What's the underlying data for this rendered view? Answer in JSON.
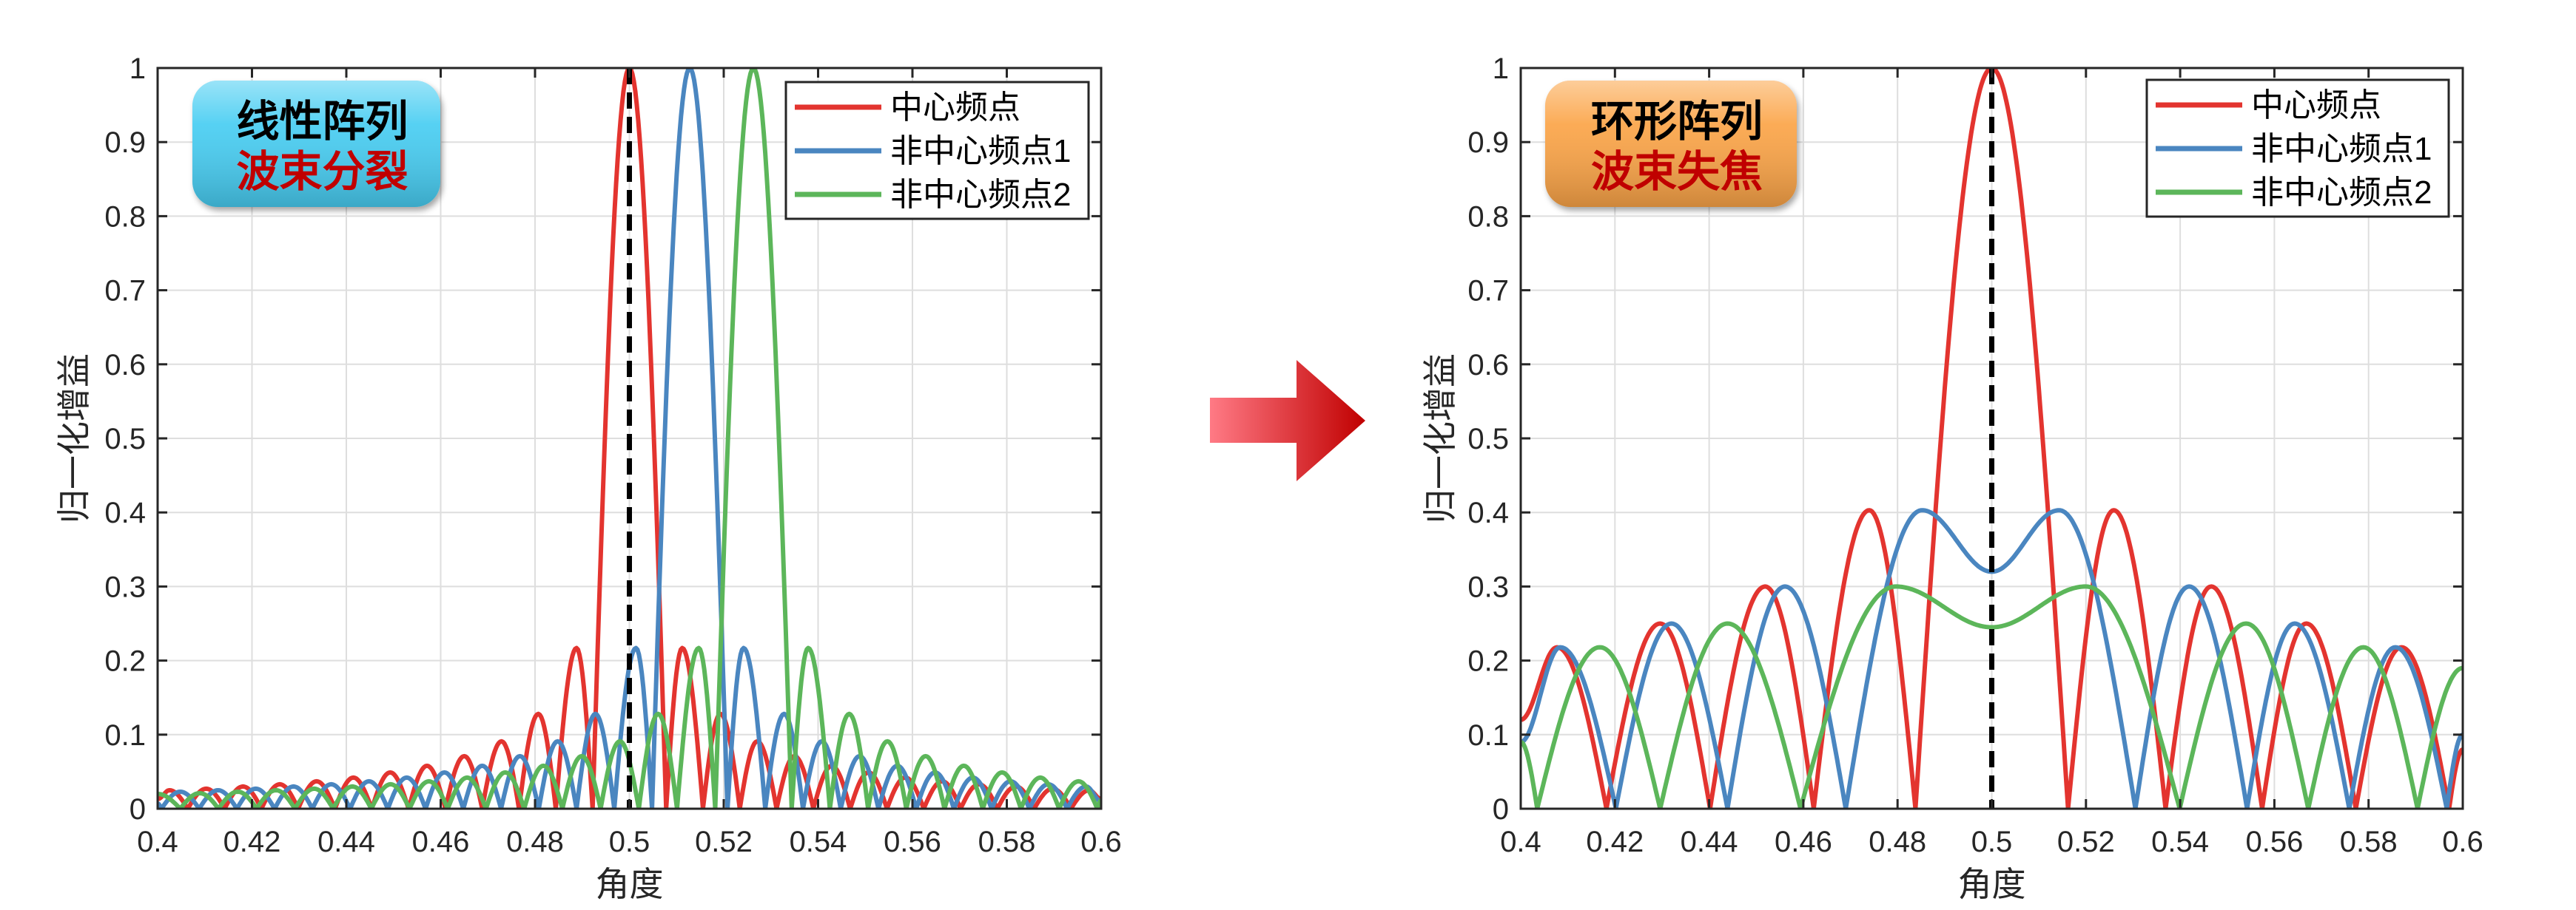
{
  "colors": {
    "red": "#e3342f",
    "blue": "#4a86c0",
    "green": "#5cb65a",
    "reference_line": "#000000",
    "arrow_start": "#ff7a85",
    "arrow_end": "#c00000"
  },
  "arrow": {
    "icon": "right-arrow-icon"
  },
  "chart_data": [
    {
      "type": "line",
      "title": "",
      "xlabel": "角度",
      "ylabel": "归一化增益",
      "xlim": [
        0.4,
        0.6
      ],
      "ylim": [
        0,
        1
      ],
      "xticks": [
        "0.4",
        "0.42",
        "0.44",
        "0.46",
        "0.48",
        "0.5",
        "0.52",
        "0.54",
        "0.56",
        "0.58",
        "0.6"
      ],
      "yticks": [
        "0",
        "0.1",
        "0.2",
        "0.3",
        "0.4",
        "0.5",
        "0.6",
        "0.7",
        "0.8",
        "0.9",
        "1"
      ],
      "grid": true,
      "legend_position": "top-right",
      "badge": {
        "line1": "线性阵列",
        "line2": "波束分裂",
        "color": "#46cdf2"
      },
      "reference_line_x": 0.5,
      "series": [
        {
          "name": "中心频点",
          "color": "#e3342f",
          "points": [
            [
              0.4,
              0.013
            ],
            [
              0.4025,
              0.025
            ],
            [
              0.4064,
              0
            ],
            [
              0.4103,
              0.027
            ],
            [
              0.4142,
              0
            ],
            [
              0.4181,
              0.03
            ],
            [
              0.422,
              0
            ],
            [
              0.4259,
              0.033
            ],
            [
              0.4298,
              0
            ],
            [
              0.4337,
              0.037
            ],
            [
              0.4376,
              0
            ],
            [
              0.4415,
              0.042
            ],
            [
              0.4454,
              0
            ],
            [
              0.4493,
              0.049
            ],
            [
              0.4532,
              0
            ],
            [
              0.4571,
              0.058
            ],
            [
              0.461,
              0
            ],
            [
              0.465,
              0.071
            ],
            [
              0.4688,
              0
            ],
            [
              0.4729,
              0.091
            ],
            [
              0.4766,
              0
            ],
            [
              0.4807,
              0.128
            ],
            [
              0.4844,
              0
            ],
            [
              0.4888,
              0.217
            ],
            [
              0.4922,
              0
            ],
            [
              0.5,
              1
            ],
            [
              0.5078,
              0
            ],
            [
              0.5112,
              0.217
            ],
            [
              0.5156,
              0
            ],
            [
              0.5193,
              0.128
            ],
            [
              0.5234,
              0
            ],
            [
              0.5271,
              0.091
            ],
            [
              0.5312,
              0
            ],
            [
              0.535,
              0.071
            ],
            [
              0.539,
              0
            ],
            [
              0.5429,
              0.058
            ],
            [
              0.5468,
              0
            ],
            [
              0.5507,
              0.049
            ],
            [
              0.5546,
              0
            ],
            [
              0.5585,
              0.042
            ],
            [
              0.5624,
              0
            ],
            [
              0.5663,
              0.037
            ],
            [
              0.5702,
              0
            ],
            [
              0.5741,
              0.033
            ],
            [
              0.578,
              0
            ],
            [
              0.5819,
              0.03
            ],
            [
              0.5858,
              0
            ],
            [
              0.5897,
              0.027
            ],
            [
              0.5936,
              0
            ],
            [
              0.5975,
              0.025
            ],
            [
              0.6,
              0.013
            ]
          ]
        },
        {
          "name": "非中心频点1",
          "color": "#4a86c0",
          "points": [
            [
              0.4,
              0.007
            ],
            [
              0.4008,
              0
            ],
            [
              0.4048,
              0.023
            ],
            [
              0.4088,
              0
            ],
            [
              0.4128,
              0.025
            ],
            [
              0.4168,
              0
            ],
            [
              0.4208,
              0.027
            ],
            [
              0.4248,
              0
            ],
            [
              0.4288,
              0.03
            ],
            [
              0.4328,
              0
            ],
            [
              0.4368,
              0.033
            ],
            [
              0.4408,
              0
            ],
            [
              0.4448,
              0.037
            ],
            [
              0.4488,
              0
            ],
            [
              0.4528,
              0.042
            ],
            [
              0.4568,
              0
            ],
            [
              0.4608,
              0.049
            ],
            [
              0.4648,
              0
            ],
            [
              0.4688,
              0.058
            ],
            [
              0.4728,
              0
            ],
            [
              0.4768,
              0.071
            ],
            [
              0.4808,
              0
            ],
            [
              0.4848,
              0.091
            ],
            [
              0.4888,
              0
            ],
            [
              0.4928,
              0.128
            ],
            [
              0.4968,
              0
            ],
            [
              0.5014,
              0.217
            ],
            [
              0.5048,
              0
            ],
            [
              0.5128,
              1
            ],
            [
              0.5208,
              0
            ],
            [
              0.5242,
              0.217
            ],
            [
              0.5288,
              0
            ],
            [
              0.5328,
              0.128
            ],
            [
              0.5368,
              0
            ],
            [
              0.5408,
              0.091
            ],
            [
              0.5448,
              0
            ],
            [
              0.5488,
              0.071
            ],
            [
              0.5528,
              0
            ],
            [
              0.5568,
              0.058
            ],
            [
              0.5608,
              0
            ],
            [
              0.5648,
              0.049
            ],
            [
              0.5688,
              0
            ],
            [
              0.5728,
              0.042
            ],
            [
              0.5768,
              0
            ],
            [
              0.5808,
              0.037
            ],
            [
              0.5848,
              0
            ],
            [
              0.5888,
              0.033
            ],
            [
              0.5928,
              0
            ],
            [
              0.5968,
              0.03
            ],
            [
              0.6,
              0.01
            ]
          ]
        },
        {
          "name": "非中心频点2",
          "color": "#5cb65a",
          "points": [
            [
              0.4,
              0.02
            ],
            [
              0.4048,
              0
            ],
            [
              0.4089,
              0.021
            ],
            [
              0.4129,
              0
            ],
            [
              0.417,
              0.023
            ],
            [
              0.421,
              0
            ],
            [
              0.4251,
              0.025
            ],
            [
              0.4291,
              0
            ],
            [
              0.4332,
              0.027
            ],
            [
              0.4372,
              0
            ],
            [
              0.4413,
              0.03
            ],
            [
              0.4453,
              0
            ],
            [
              0.4494,
              0.033
            ],
            [
              0.4534,
              0
            ],
            [
              0.4575,
              0.037
            ],
            [
              0.4615,
              0
            ],
            [
              0.4656,
              0.042
            ],
            [
              0.4696,
              0
            ],
            [
              0.4737,
              0.049
            ],
            [
              0.4777,
              0
            ],
            [
              0.4818,
              0.058
            ],
            [
              0.4858,
              0
            ],
            [
              0.4899,
              0.071
            ],
            [
              0.4939,
              0
            ],
            [
              0.498,
              0.091
            ],
            [
              0.502,
              0
            ],
            [
              0.5061,
              0.128
            ],
            [
              0.5101,
              0
            ],
            [
              0.5147,
              0.217
            ],
            [
              0.5182,
              0
            ],
            [
              0.5263,
              1
            ],
            [
              0.5344,
              0
            ],
            [
              0.5379,
              0.217
            ],
            [
              0.5425,
              0
            ],
            [
              0.5466,
              0.128
            ],
            [
              0.5506,
              0
            ],
            [
              0.5547,
              0.091
            ],
            [
              0.5587,
              0
            ],
            [
              0.5628,
              0.071
            ],
            [
              0.5668,
              0
            ],
            [
              0.5709,
              0.058
            ],
            [
              0.5749,
              0
            ],
            [
              0.579,
              0.049
            ],
            [
              0.583,
              0
            ],
            [
              0.5871,
              0.042
            ],
            [
              0.5911,
              0
            ],
            [
              0.5952,
              0.037
            ],
            [
              0.5992,
              0
            ],
            [
              0.6,
              0.011
            ]
          ]
        }
      ]
    },
    {
      "type": "line",
      "title": "",
      "xlabel": "角度",
      "ylabel": "归一化增益",
      "xlim": [
        0.4,
        0.6
      ],
      "ylim": [
        0,
        1
      ],
      "xticks": [
        "0.4",
        "0.42",
        "0.44",
        "0.46",
        "0.48",
        "0.5",
        "0.52",
        "0.54",
        "0.56",
        "0.58",
        "0.6"
      ],
      "yticks": [
        "0",
        "0.1",
        "0.2",
        "0.3",
        "0.4",
        "0.5",
        "0.6",
        "0.7",
        "0.8",
        "0.9",
        "1"
      ],
      "grid": true,
      "legend_position": "top-right",
      "badge": {
        "line1": "环形阵列",
        "line2": "波束失焦",
        "color": "#fba446"
      },
      "reference_line_x": 0.5,
      "series": [
        {
          "name": "中心频点",
          "color": "#e3342f",
          "points": [
            [
              0.4,
              0.12
            ],
            [
              0.4077,
              0.218
            ],
            [
              0.4182,
              0
            ],
            [
              0.4296,
              0.25
            ],
            [
              0.4402,
              0
            ],
            [
              0.4519,
              0.3
            ],
            [
              0.4622,
              0
            ],
            [
              0.474,
              0.403
            ],
            [
              0.4838,
              0
            ],
            [
              0.5,
              1
            ],
            [
              0.5162,
              0
            ],
            [
              0.5259,
              0.403
            ],
            [
              0.5369,
              0
            ],
            [
              0.5466,
              0.3
            ],
            [
              0.5574,
              0
            ],
            [
              0.5668,
              0.25
            ],
            [
              0.5773,
              0
            ],
            [
              0.587,
              0.218
            ],
            [
              0.5971,
              0
            ],
            [
              0.6,
              0.08
            ]
          ]
        },
        {
          "name": "非中心频点1",
          "color": "#4a86c0",
          "points": [
            [
              0.4,
              0.09
            ],
            [
              0.4084,
              0.218
            ],
            [
              0.4202,
              0
            ],
            [
              0.432,
              0.25
            ],
            [
              0.4439,
              0
            ],
            [
              0.4561,
              0.3
            ],
            [
              0.469,
              0
            ],
            [
              0.4852,
              0.403
            ],
            [
              0.5,
              0.32
            ],
            [
              0.5143,
              0.403
            ],
            [
              0.5305,
              0
            ],
            [
              0.5419,
              0.3
            ],
            [
              0.5542,
              0
            ],
            [
              0.5643,
              0.25
            ],
            [
              0.5759,
              0
            ],
            [
              0.5857,
              0.218
            ],
            [
              0.5966,
              0
            ],
            [
              0.6,
              0.1
            ]
          ]
        },
        {
          "name": "非中心频点2",
          "color": "#5cb65a",
          "points": [
            [
              0.4,
              0.09
            ],
            [
              0.4035,
              0
            ],
            [
              0.4168,
              0.218
            ],
            [
              0.4296,
              0
            ],
            [
              0.4439,
              0.25
            ],
            [
              0.4594,
              0
            ],
            [
              0.4796,
              0.3
            ],
            [
              0.5,
              0.245
            ],
            [
              0.52,
              0.3
            ],
            [
              0.5399,
              0
            ],
            [
              0.554,
              0.25
            ],
            [
              0.5672,
              0
            ],
            [
              0.5789,
              0.218
            ],
            [
              0.5904,
              0
            ],
            [
              0.6,
              0.19
            ]
          ]
        }
      ]
    }
  ]
}
